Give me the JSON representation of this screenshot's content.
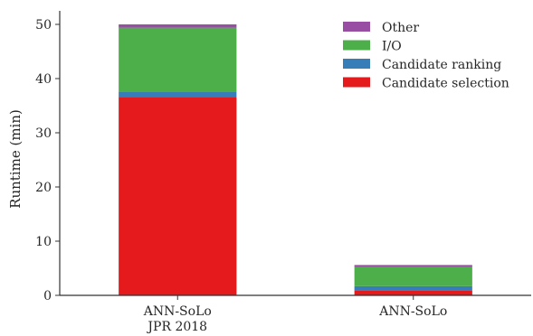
{
  "chart_data": {
    "type": "bar",
    "stacked": true,
    "categories": [
      "ANN-SoLo\nJPR 2018",
      "ANN-SoLo"
    ],
    "series": [
      {
        "name": "Candidate selection",
        "color": "#e41a1c",
        "values": [
          36.6,
          0.9
        ]
      },
      {
        "name": "Candidate ranking",
        "color": "#377eb8",
        "values": [
          0.9,
          0.8
        ]
      },
      {
        "name": "I/O",
        "color": "#4daf4a",
        "values": [
          11.9,
          3.5
        ]
      },
      {
        "name": "Other",
        "color": "#984ea3",
        "values": [
          0.6,
          0.4
        ]
      }
    ],
    "xlabel": "",
    "ylabel": "Runtime (min)",
    "ylim": [
      0,
      52.5
    ],
    "yticks": [
      0,
      10,
      20,
      30,
      40,
      50
    ],
    "grid": false,
    "legend": {
      "position": "top-right",
      "order": [
        "Other",
        "I/O",
        "Candidate ranking",
        "Candidate selection"
      ]
    }
  }
}
